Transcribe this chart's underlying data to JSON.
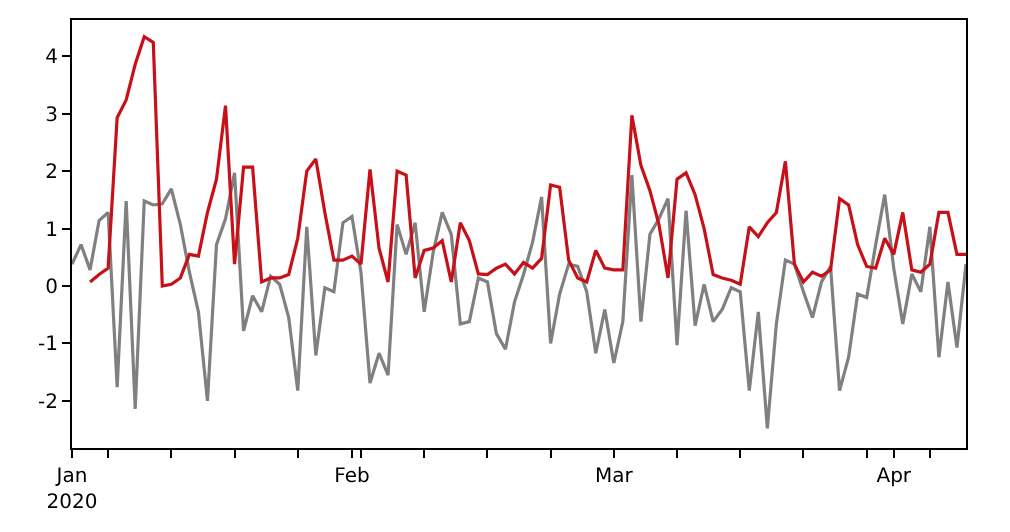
{
  "chart_data": {
    "type": "line",
    "x": [
      "2020-01-01",
      "2020-01-02",
      "2020-01-03",
      "2020-01-04",
      "2020-01-05",
      "2020-01-06",
      "2020-01-07",
      "2020-01-08",
      "2020-01-09",
      "2020-01-10",
      "2020-01-11",
      "2020-01-12",
      "2020-01-13",
      "2020-01-14",
      "2020-01-15",
      "2020-01-16",
      "2020-01-17",
      "2020-01-18",
      "2020-01-19",
      "2020-01-20",
      "2020-01-21",
      "2020-01-22",
      "2020-01-23",
      "2020-01-24",
      "2020-01-25",
      "2020-01-26",
      "2020-01-27",
      "2020-01-28",
      "2020-01-29",
      "2020-01-30",
      "2020-01-31",
      "2020-02-01",
      "2020-02-02",
      "2020-02-03",
      "2020-02-04",
      "2020-02-05",
      "2020-02-06",
      "2020-02-07",
      "2020-02-08",
      "2020-02-09",
      "2020-02-10",
      "2020-02-11",
      "2020-02-12",
      "2020-02-13",
      "2020-02-14",
      "2020-02-15",
      "2020-02-16",
      "2020-02-17",
      "2020-02-18",
      "2020-02-19",
      "2020-02-20",
      "2020-02-21",
      "2020-02-22",
      "2020-02-23",
      "2020-02-24",
      "2020-02-25",
      "2020-02-26",
      "2020-02-27",
      "2020-02-28",
      "2020-02-29",
      "2020-03-01",
      "2020-03-02",
      "2020-03-03",
      "2020-03-04",
      "2020-03-05",
      "2020-03-06",
      "2020-03-07",
      "2020-03-08",
      "2020-03-09",
      "2020-03-10",
      "2020-03-11",
      "2020-03-12",
      "2020-03-13",
      "2020-03-14",
      "2020-03-15",
      "2020-03-16",
      "2020-03-17",
      "2020-03-18",
      "2020-03-19",
      "2020-03-20",
      "2020-03-21",
      "2020-03-22",
      "2020-03-23",
      "2020-03-24",
      "2020-03-25",
      "2020-03-26",
      "2020-03-27",
      "2020-03-28",
      "2020-03-29",
      "2020-03-30",
      "2020-03-31",
      "2020-04-01",
      "2020-04-02",
      "2020-04-03",
      "2020-04-04",
      "2020-04-05",
      "2020-04-06",
      "2020-04-07",
      "2020-04-08",
      "2020-04-09"
    ],
    "series": [
      {
        "color": "#808080",
        "values": [
          0.38,
          0.72,
          0.28,
          1.14,
          1.28,
          -1.76,
          1.48,
          -2.14,
          1.48,
          1.41,
          1.43,
          1.69,
          1.07,
          0.24,
          -0.45,
          -2.0,
          0.72,
          1.17,
          1.97,
          -0.78,
          -0.17,
          -0.45,
          0.17,
          0.03,
          -0.55,
          -1.82,
          1.03,
          -1.21,
          -0.03,
          -0.1,
          1.1,
          1.21,
          0.24,
          -1.69,
          -1.17,
          -1.55,
          1.07,
          0.55,
          1.1,
          -0.45,
          0.59,
          1.28,
          0.9,
          -0.66,
          -0.62,
          0.14,
          0.07,
          -0.83,
          -1.1,
          -0.28,
          0.2,
          0.76,
          1.55,
          -1.0,
          -0.14,
          0.38,
          0.34,
          -0.1,
          -1.17,
          -0.41,
          -1.34,
          -0.62,
          1.93,
          -0.62,
          0.9,
          1.17,
          1.52,
          -1.03,
          1.31,
          -0.69,
          0.03,
          -0.62,
          -0.41,
          -0.03,
          -0.1,
          -1.82,
          -0.45,
          -2.48,
          -0.66,
          0.45,
          0.38,
          -0.1,
          -0.55,
          0.07,
          0.34,
          -1.82,
          -1.24,
          -0.14,
          -0.2,
          0.72,
          1.59,
          0.31,
          -0.66,
          0.21,
          -0.1,
          1.03,
          -1.24,
          0.07,
          -1.07,
          0.38
        ]
      },
      {
        "color": "#c81018",
        "values": [
          null,
          null,
          0.07,
          0.2,
          0.31,
          2.93,
          3.24,
          3.86,
          4.34,
          4.24,
          0.0,
          0.03,
          0.14,
          0.55,
          0.52,
          1.28,
          1.86,
          3.14,
          0.38,
          2.07,
          2.07,
          0.07,
          0.14,
          0.14,
          0.2,
          0.83,
          2.0,
          2.21,
          1.28,
          0.45,
          0.45,
          0.52,
          0.38,
          2.03,
          0.66,
          0.07,
          2.0,
          1.93,
          0.14,
          0.62,
          0.66,
          0.79,
          0.07,
          1.1,
          0.79,
          0.21,
          0.2,
          0.31,
          0.38,
          0.21,
          0.41,
          0.31,
          0.48,
          1.76,
          1.72,
          0.45,
          0.14,
          0.07,
          0.62,
          0.31,
          0.28,
          0.28,
          2.97,
          2.1,
          1.66,
          1.07,
          0.14,
          1.86,
          1.97,
          1.59,
          1.0,
          0.2,
          0.14,
          0.1,
          0.03,
          1.03,
          0.86,
          1.1,
          1.28,
          2.17,
          0.38,
          0.07,
          0.24,
          0.17,
          0.28,
          1.52,
          1.41,
          0.72,
          0.34,
          0.31,
          0.83,
          0.55,
          1.28,
          0.28,
          0.24,
          0.38,
          1.28,
          1.28,
          0.55,
          0.55
        ]
      }
    ],
    "xlim": [
      "2020-01-01",
      "2020-04-09"
    ],
    "xticks": [
      {
        "value": "2020-01-01",
        "label": "Jan\n2020"
      },
      {
        "value": "2020-01-05",
        "label": null
      },
      {
        "value": "2020-01-12",
        "label": null
      },
      {
        "value": "2020-01-19",
        "label": null
      },
      {
        "value": "2020-01-26",
        "label": null
      },
      {
        "value": "2020-02-01",
        "label": "Feb"
      },
      {
        "value": "2020-02-02",
        "label": null
      },
      {
        "value": "2020-02-09",
        "label": null
      },
      {
        "value": "2020-02-16",
        "label": null
      },
      {
        "value": "2020-02-23",
        "label": null
      },
      {
        "value": "2020-03-01",
        "label": "Mar"
      },
      {
        "value": "2020-03-08",
        "label": null
      },
      {
        "value": "2020-03-15",
        "label": null
      },
      {
        "value": "2020-03-22",
        "label": null
      },
      {
        "value": "2020-03-29",
        "label": null
      },
      {
        "value": "2020-04-01",
        "label": "Apr"
      },
      {
        "value": "2020-04-05",
        "label": null
      }
    ],
    "ylim": [
      -2.82,
      4.63
    ],
    "yticks": [
      -2,
      -1,
      0,
      1,
      2,
      3,
      4
    ],
    "line_style": "solid"
  }
}
